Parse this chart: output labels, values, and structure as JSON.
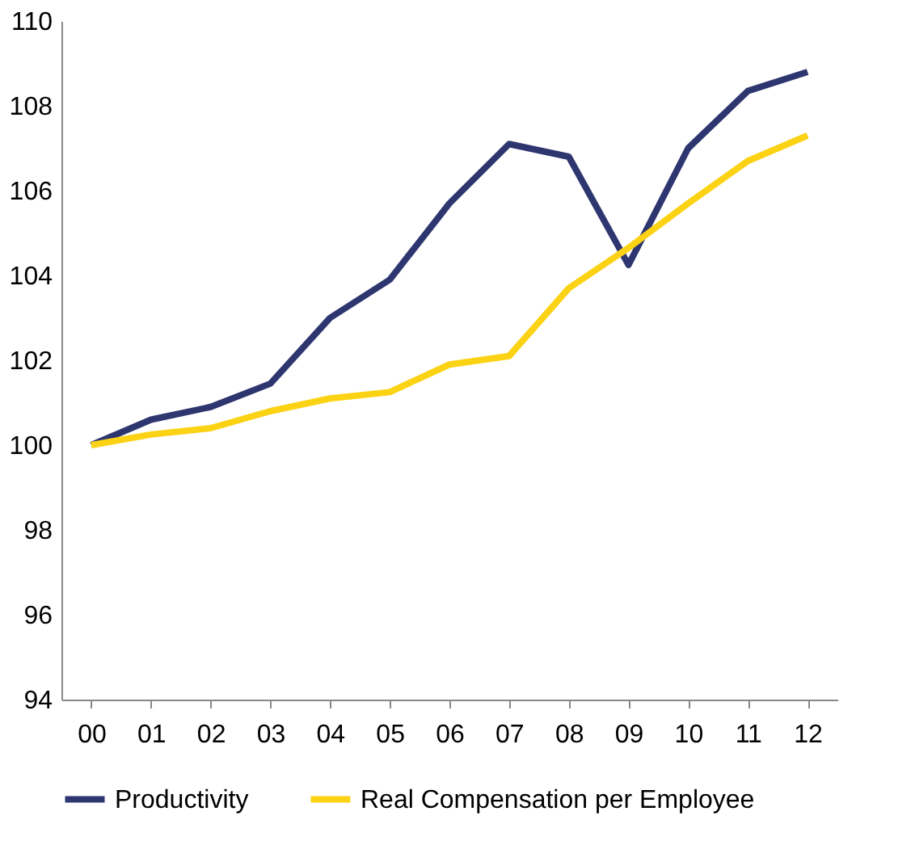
{
  "chart_data": {
    "type": "line",
    "categories": [
      "00",
      "01",
      "02",
      "03",
      "04",
      "05",
      "06",
      "07",
      "08",
      "09",
      "10",
      "11",
      "12"
    ],
    "series": [
      {
        "name": "Productivity",
        "color": "#2e3670",
        "values": [
          100,
          100.6,
          100.9,
          101.45,
          103.0,
          103.9,
          105.7,
          107.1,
          106.8,
          104.25,
          107.0,
          108.35,
          108.8
        ]
      },
      {
        "name": "Real Compensation per Employee",
        "color": "#fcd214",
        "values": [
          100,
          100.25,
          100.4,
          100.8,
          101.1,
          101.25,
          101.9,
          102.1,
          103.7,
          104.65,
          105.7,
          106.7,
          107.3
        ]
      }
    ],
    "ylim": [
      94,
      110
    ],
    "yticks": [
      94,
      96,
      98,
      100,
      102,
      104,
      106,
      108,
      110
    ],
    "grid": false,
    "legend": "bottom",
    "marker": "none",
    "line_style": "solid"
  }
}
